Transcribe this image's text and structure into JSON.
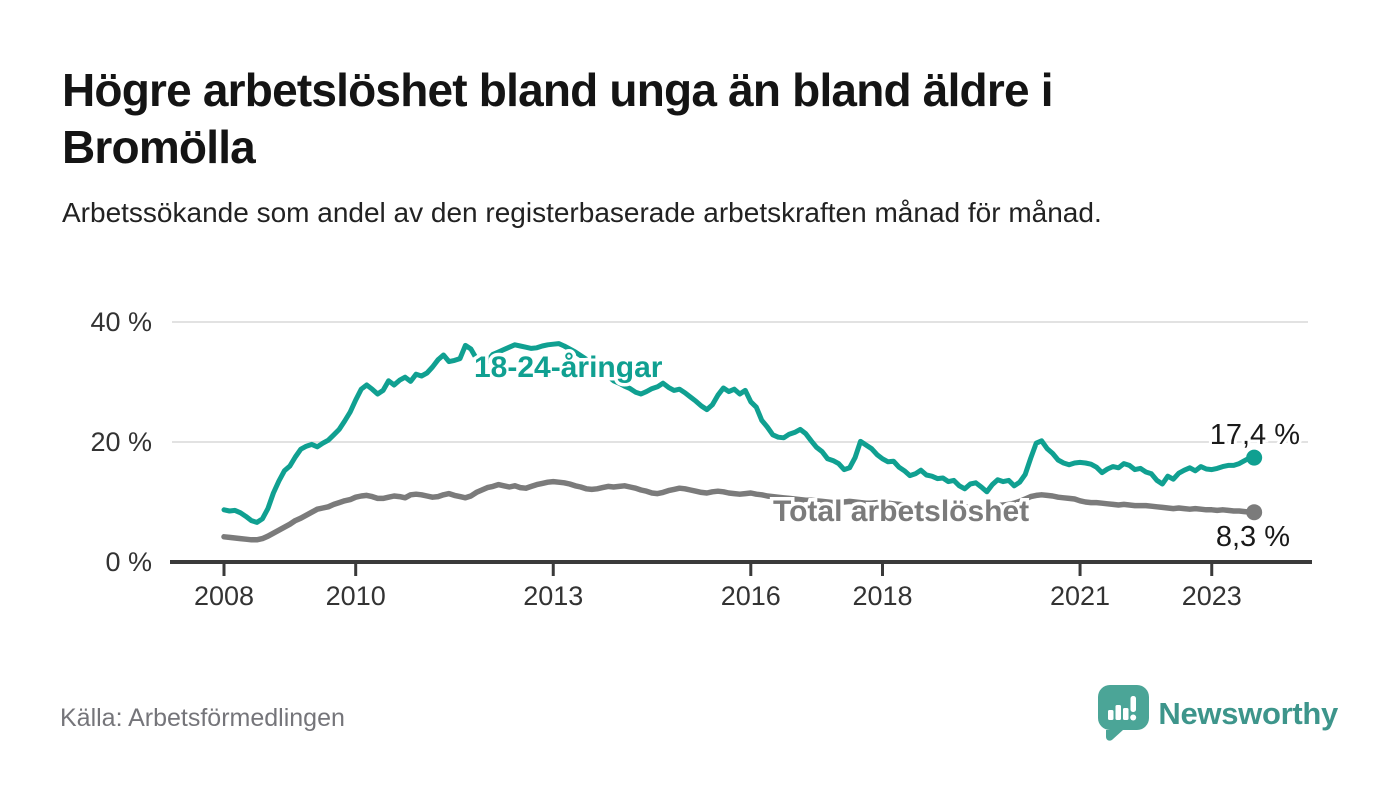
{
  "header": {
    "title": "Högre arbetslöshet bland unga än bland äldre i Bromölla",
    "subtitle": "Arbetssökande som andel av den registerbaserade arbetskraften månad för månad."
  },
  "footer": {
    "source": "Källa: Arbetsförmedlingen",
    "brand": "Newsworthy",
    "brand_icon": "bar-chart-speech-bubble-icon"
  },
  "colors": {
    "youth_line": "#10a091",
    "total_line": "#7b7b7b",
    "grid": "#e2e2e2",
    "axis": "#3a3a3a",
    "tick_label": "#333333",
    "annotation": "#1a1a1a",
    "title": "#141414",
    "subtitle": "#222222",
    "source_text": "#75757a",
    "brand_text": "#3d958b",
    "logo_bubble": "#4ba597"
  },
  "chart_data": {
    "type": "line",
    "title": "",
    "xlabel": "",
    "ylabel": "",
    "x_unit": "month",
    "x_start": "2008-01",
    "x_end": "2023-08",
    "ylim": [
      0,
      44
    ],
    "grid": "horizontal",
    "legend_position": "inline-labels",
    "y_ticks": [
      {
        "value": 0,
        "label": "0 %"
      },
      {
        "value": 20,
        "label": "20 %"
      },
      {
        "value": 40,
        "label": "40 %"
      }
    ],
    "x_ticks": [
      {
        "label": "2008",
        "month_index": 0
      },
      {
        "label": "2010",
        "month_index": 24
      },
      {
        "label": "2013",
        "month_index": 60
      },
      {
        "label": "2016",
        "month_index": 96
      },
      {
        "label": "2018",
        "month_index": 120
      },
      {
        "label": "2021",
        "month_index": 156
      },
      {
        "label": "2023",
        "month_index": 180
      }
    ],
    "series": [
      {
        "name": "18-24-åringar",
        "color": "#10a091",
        "end_label": "17,4 %",
        "values": [
          8.7,
          8.5,
          8.6,
          8.2,
          7.6,
          6.9,
          6.6,
          7.2,
          8.9,
          11.5,
          13.5,
          15.2,
          16.0,
          17.5,
          18.8,
          19.3,
          19.6,
          19.2,
          19.8,
          20.3,
          21.2,
          22.1,
          23.5,
          25.0,
          27.0,
          28.8,
          29.5,
          28.8,
          28.0,
          28.6,
          30.2,
          29.5,
          30.3,
          30.8,
          30.1,
          31.3,
          31.0,
          31.5,
          32.5,
          33.7,
          34.5,
          33.4,
          33.6,
          33.9,
          36.1,
          35.5,
          33.9,
          33.2,
          33.5,
          34.6,
          35.0,
          35.4,
          35.8,
          36.2,
          36.0,
          35.8,
          35.6,
          35.7,
          36.0,
          36.2,
          36.3,
          36.4,
          36.0,
          35.5,
          35.0,
          34.4,
          33.8,
          33.2,
          32.5,
          31.8,
          31.0,
          30.2,
          29.8,
          29.3,
          28.9,
          28.3,
          28.0,
          28.4,
          28.9,
          29.2,
          29.8,
          29.1,
          28.6,
          28.8,
          28.2,
          27.5,
          26.8,
          26.0,
          25.4,
          26.2,
          27.8,
          29.0,
          28.4,
          28.8,
          28.0,
          28.6,
          26.7,
          25.8,
          23.6,
          22.5,
          21.2,
          20.8,
          20.7,
          21.3,
          21.6,
          22.1,
          21.4,
          20.2,
          19.1,
          18.4,
          17.2,
          16.9,
          16.4,
          15.4,
          15.7,
          17.4,
          20.1,
          19.5,
          18.9,
          17.9,
          17.2,
          16.7,
          16.8,
          15.8,
          15.2,
          14.4,
          14.7,
          15.3,
          14.5,
          14.3,
          13.9,
          14.0,
          13.4,
          13.6,
          12.7,
          12.2,
          13.0,
          13.2,
          12.5,
          11.7,
          12.9,
          13.7,
          13.4,
          13.6,
          12.7,
          13.3,
          14.6,
          17.3,
          19.8,
          20.2,
          18.9,
          18.1,
          17.0,
          16.5,
          16.2,
          16.5,
          16.6,
          16.5,
          16.3,
          15.8,
          14.9,
          15.5,
          15.9,
          15.7,
          16.4,
          16.1,
          15.4,
          15.6,
          15.0,
          14.7,
          13.6,
          13.0,
          14.3,
          13.8,
          14.8,
          15.3,
          15.7,
          15.2,
          15.9,
          15.5,
          15.4,
          15.6,
          15.9,
          16.1,
          16.1,
          16.4,
          16.9,
          17.4
        ]
      },
      {
        "name": "Total arbetslöshet",
        "color": "#7b7b7b",
        "end_label": "8,3 %",
        "values": [
          4.2,
          4.1,
          4.0,
          3.9,
          3.8,
          3.7,
          3.7,
          3.9,
          4.3,
          4.8,
          5.3,
          5.8,
          6.3,
          6.9,
          7.3,
          7.8,
          8.3,
          8.8,
          9.0,
          9.2,
          9.6,
          9.9,
          10.2,
          10.4,
          10.8,
          11.0,
          11.1,
          10.9,
          10.6,
          10.6,
          10.8,
          11.0,
          10.9,
          10.7,
          11.2,
          11.3,
          11.2,
          11.0,
          10.8,
          10.9,
          11.2,
          11.4,
          11.1,
          10.9,
          10.7,
          11.0,
          11.6,
          12.0,
          12.4,
          12.6,
          12.9,
          12.7,
          12.5,
          12.7,
          12.4,
          12.3,
          12.6,
          12.9,
          13.1,
          13.3,
          13.4,
          13.3,
          13.2,
          13.0,
          12.7,
          12.5,
          12.2,
          12.1,
          12.2,
          12.4,
          12.6,
          12.5,
          12.6,
          12.7,
          12.5,
          12.3,
          12.0,
          11.8,
          11.5,
          11.4,
          11.6,
          11.9,
          12.1,
          12.3,
          12.2,
          12.0,
          11.8,
          11.6,
          11.5,
          11.7,
          11.8,
          11.7,
          11.5,
          11.4,
          11.3,
          11.4,
          11.5,
          11.3,
          11.2,
          11.0,
          10.9,
          10.8,
          10.7,
          10.6,
          10.5,
          10.4,
          10.3,
          10.3,
          10.2,
          10.1,
          10.0,
          9.9,
          9.9,
          10.0,
          10.1,
          10.0,
          9.9,
          9.8,
          9.8,
          9.9,
          9.9,
          9.8,
          9.7,
          9.6,
          9.5,
          9.4,
          9.4,
          9.5,
          9.4,
          9.3,
          9.2,
          9.2,
          9.3,
          9.4,
          9.3,
          9.2,
          9.1,
          9.2,
          9.3,
          9.2,
          9.3,
          9.4,
          9.5,
          9.6,
          9.8,
          10.1,
          10.5,
          10.9,
          11.1,
          11.2,
          11.1,
          11.0,
          10.8,
          10.7,
          10.6,
          10.5,
          10.2,
          10.0,
          9.9,
          9.9,
          9.8,
          9.7,
          9.6,
          9.5,
          9.6,
          9.5,
          9.4,
          9.4,
          9.4,
          9.3,
          9.2,
          9.1,
          9.0,
          8.9,
          9.0,
          8.9,
          8.8,
          8.9,
          8.8,
          8.7,
          8.7,
          8.6,
          8.7,
          8.6,
          8.5,
          8.5,
          8.4,
          8.3
        ]
      }
    ]
  }
}
